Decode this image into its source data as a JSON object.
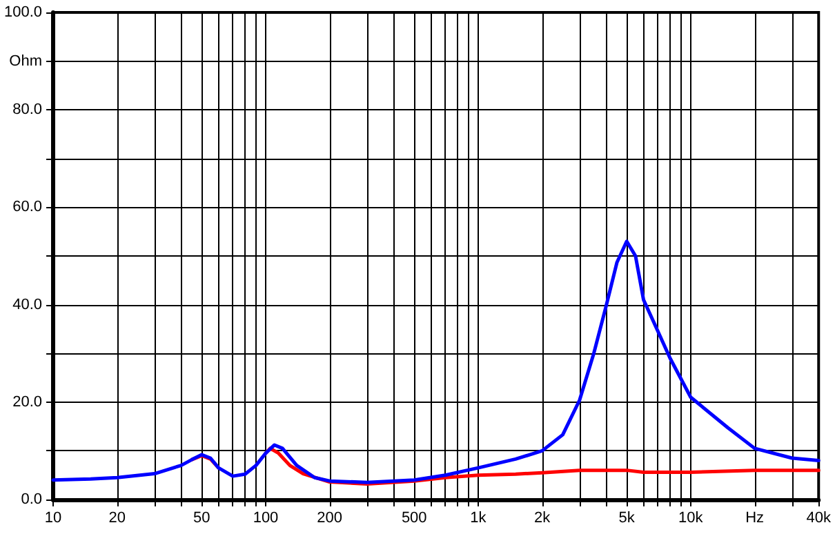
{
  "chart_data": {
    "type": "line",
    "log": "x",
    "grid": true,
    "marker": "none",
    "line_style": "solid",
    "xlim": [
      10,
      40000
    ],
    "ylim": [
      0,
      100
    ],
    "xticks": [
      10,
      20,
      {
        "value": 30,
        "label": null
      },
      {
        "value": 40,
        "label": null
      },
      50,
      {
        "value": 60,
        "label": null
      },
      {
        "value": 70,
        "label": null
      },
      {
        "value": 80,
        "label": null
      },
      {
        "value": 90,
        "label": null
      },
      100,
      200,
      {
        "value": 300,
        "label": null
      },
      {
        "value": 400,
        "label": null
      },
      500,
      {
        "value": 600,
        "label": null
      },
      {
        "value": 700,
        "label": null
      },
      {
        "value": 800,
        "label": null
      },
      {
        "value": 900,
        "label": null
      },
      {
        "value": 1000,
        "label": "1k"
      },
      {
        "value": 2000,
        "label": "2k"
      },
      {
        "value": 3000,
        "label": null
      },
      {
        "value": 4000,
        "label": null
      },
      {
        "value": 5000,
        "label": "5k"
      },
      {
        "value": 6000,
        "label": null
      },
      {
        "value": 7000,
        "label": null
      },
      {
        "value": 8000,
        "label": null
      },
      {
        "value": 9000,
        "label": null
      },
      {
        "value": 10000,
        "label": "10k"
      },
      {
        "value": 20000,
        "label": "Hz"
      },
      {
        "value": 30000,
        "label": null
      },
      {
        "value": 40000,
        "label": "40k"
      }
    ],
    "yticks": [
      {
        "value": 0,
        "label": "0.0"
      },
      {
        "value": 10,
        "label": null
      },
      {
        "value": 20,
        "label": "20.0"
      },
      {
        "value": 30,
        "label": null
      },
      {
        "value": 40,
        "label": "40.0"
      },
      {
        "value": 50,
        "label": null
      },
      {
        "value": 60,
        "label": "60.0"
      },
      {
        "value": 70,
        "label": null
      },
      {
        "value": 80,
        "label": "80.0"
      },
      {
        "value": 90,
        "label": "Ohm"
      },
      {
        "value": 100,
        "label": "100.0"
      }
    ],
    "series": [
      {
        "color": "#ff0000",
        "x": [
          45,
          50,
          55,
          60,
          80,
          100,
          105,
          115,
          130,
          150,
          200,
          300,
          500,
          700,
          1000,
          1500,
          2000,
          3000,
          5000,
          6000,
          10000,
          20000,
          40000
        ],
        "values": [
          8.2,
          9.0,
          8.3,
          6.5,
          null,
          9.5,
          10.5,
          9.5,
          7.0,
          5.3,
          3.6,
          3.2,
          3.8,
          4.5,
          5.0,
          5.2,
          5.5,
          6.0,
          6.0,
          5.6,
          5.6,
          6.0,
          6.0
        ]
      },
      {
        "color": "#0000ff",
        "x": [
          10,
          15,
          20,
          30,
          40,
          45,
          50,
          55,
          60,
          70,
          80,
          90,
          100,
          110,
          120,
          140,
          170,
          200,
          300,
          500,
          700,
          1000,
          1500,
          2000,
          2500,
          3000,
          3500,
          4000,
          4500,
          5000,
          5500,
          6000,
          7000,
          8000,
          10000,
          15000,
          20000,
          30000,
          40000
        ],
        "values": [
          4.0,
          4.2,
          4.5,
          5.3,
          7.0,
          8.2,
          9.2,
          8.5,
          6.5,
          4.8,
          5.2,
          7.0,
          9.5,
          11.2,
          10.5,
          7.0,
          4.5,
          3.8,
          3.5,
          4.0,
          5.0,
          6.5,
          8.3,
          10.0,
          13.3,
          20.4,
          30.0,
          39.7,
          48.7,
          53.0,
          50.0,
          41.0,
          34.6,
          29.0,
          21.0,
          14.7,
          10.5,
          8.5,
          8.0
        ]
      }
    ]
  }
}
